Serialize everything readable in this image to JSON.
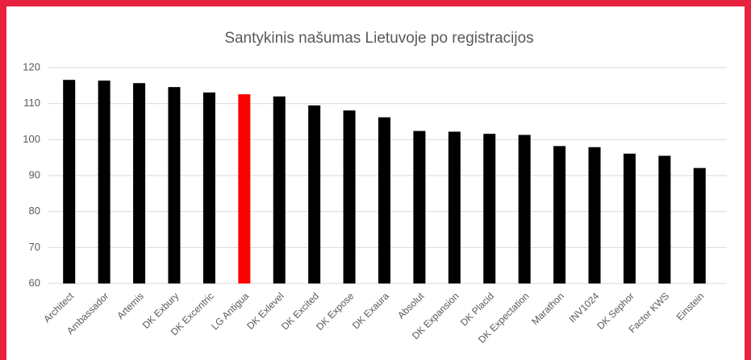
{
  "chart_data": {
    "type": "bar",
    "title": "Santykinis našumas Lietuvoje po registracijos",
    "categories": [
      "Architect",
      "Ambassador",
      "Artemis",
      "DK Exbury",
      "DK Excentric",
      "LG Antigua",
      "DK Exlevel",
      "DK Excited",
      "DK Expose",
      "DK Exaura",
      "Absolut",
      "DK Expansion",
      "DK Placid",
      "DK Expectation",
      "Marathon",
      "INV1024",
      "DK Sephor",
      "Factor KWS",
      "Einstein"
    ],
    "values": [
      116.6,
      116.4,
      115.7,
      114.6,
      113.1,
      112.6,
      112.0,
      109.5,
      108.1,
      106.2,
      102.4,
      102.2,
      101.6,
      101.3,
      98.2,
      97.9,
      96.1,
      95.5,
      92.1
    ],
    "colors": [
      "#000000",
      "#000000",
      "#000000",
      "#000000",
      "#000000",
      "#ff0000",
      "#000000",
      "#000000",
      "#000000",
      "#000000",
      "#000000",
      "#000000",
      "#000000",
      "#000000",
      "#000000",
      "#000000",
      "#000000",
      "#000000",
      "#000000"
    ],
    "ylim": [
      60,
      120
    ],
    "yticks": [
      60,
      70,
      80,
      90,
      100,
      110,
      120
    ],
    "grid": true
  }
}
